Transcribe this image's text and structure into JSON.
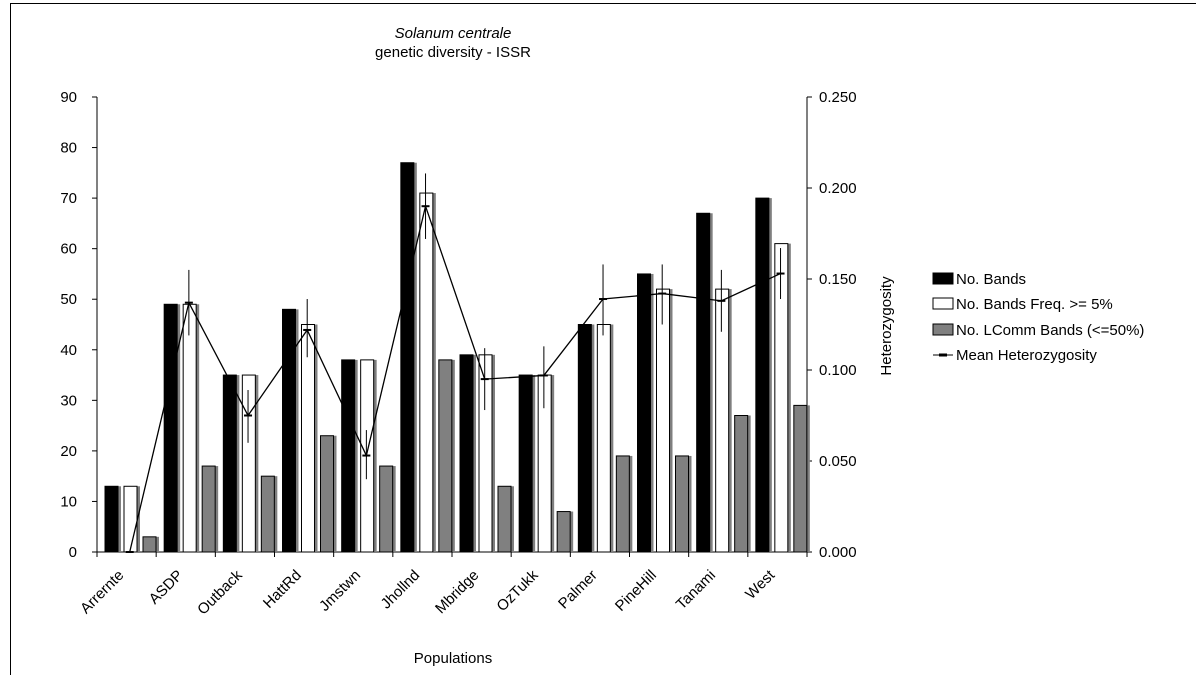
{
  "chart_data": {
    "type": "bar",
    "title": "Solanum centrale",
    "subtitle": "genetic diversity - ISSR",
    "xlabel": "Populations",
    "ylabel": "",
    "y2label": "Heterozygosity",
    "ylim": [
      0,
      90
    ],
    "y2lim": [
      0,
      0.25
    ],
    "yticks": [
      "0",
      "10",
      "20",
      "30",
      "40",
      "50",
      "60",
      "70",
      "80",
      "90"
    ],
    "y2ticks": [
      "0.000",
      "0.050",
      "0.100",
      "0.150",
      "0.200",
      "0.250"
    ],
    "categories": [
      "Arrernte",
      "ASDP",
      "Outback",
      "HattRd",
      "Jmstwn",
      "Jhollnd",
      "Mbridge",
      "OzTukk",
      "Palmer",
      "PineHill",
      "Tanami",
      "West"
    ],
    "series": [
      {
        "name": "No. Bands",
        "type": "bar",
        "color": "#000000",
        "values": [
          13,
          49,
          35,
          48,
          38,
          77,
          39,
          35,
          45,
          55,
          67,
          70
        ]
      },
      {
        "name": "No. Bands Freq. >= 5%",
        "type": "bar",
        "color": "#ffffff",
        "values": [
          13,
          49,
          35,
          45,
          38,
          71,
          39,
          35,
          45,
          52,
          52,
          61
        ]
      },
      {
        "name": "No. LComm Bands (<=50%)",
        "type": "bar",
        "color": "#808080",
        "values": [
          3,
          17,
          15,
          23,
          17,
          38,
          13,
          8,
          19,
          19,
          27,
          29
        ]
      },
      {
        "name": "Mean Heterozygosity",
        "type": "line",
        "axis": "right",
        "color": "#000000",
        "values": [
          0.0,
          0.137,
          0.075,
          0.122,
          0.053,
          0.19,
          0.095,
          0.097,
          0.139,
          0.142,
          0.138,
          0.153
        ],
        "error_low": [
          0.0,
          0.119,
          0.06,
          0.107,
          0.04,
          0.172,
          0.078,
          0.079,
          0.119,
          0.125,
          0.121,
          0.139
        ],
        "error_high": [
          0.0,
          0.155,
          0.089,
          0.139,
          0.067,
          0.208,
          0.112,
          0.113,
          0.158,
          0.158,
          0.155,
          0.167
        ]
      }
    ],
    "grid": false,
    "legend_position": "right"
  }
}
